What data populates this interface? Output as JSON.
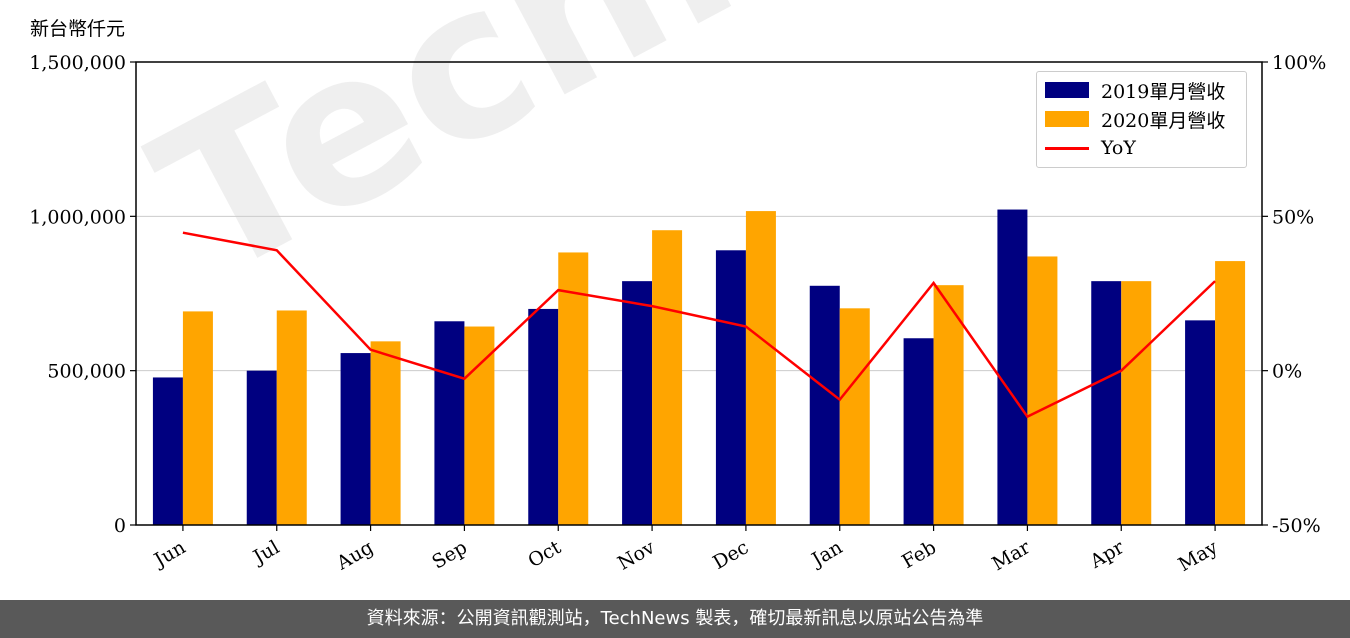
{
  "unit_label": "新台幣仟元",
  "watermark_text": "TechNews",
  "footer_text": "資料來源：公開資訊觀測站，TechNews 製表，確切最新訊息以原站公告為準",
  "colors": {
    "series_2019": "#000080",
    "series_2020": "#FFA500",
    "yoy": "#FF0000",
    "footer_bg": "#595959",
    "grid": "#cccccc"
  },
  "chart_data": {
    "type": "bar",
    "categories": [
      "Jun",
      "Jul",
      "Aug",
      "Sep",
      "Oct",
      "Nov",
      "Dec",
      "Jan",
      "Feb",
      "Mar",
      "Apr",
      "May"
    ],
    "series": [
      {
        "name": "2019單月營收",
        "type": "bar",
        "axis": "left",
        "values": [
          478000,
          500000,
          557000,
          660000,
          700000,
          790000,
          890000,
          775000,
          605000,
          1022000,
          790000,
          663000
        ]
      },
      {
        "name": "2020單月營收",
        "type": "bar",
        "axis": "left",
        "values": [
          692000,
          695000,
          595000,
          643000,
          883000,
          955000,
          1017000,
          702000,
          777000,
          870000,
          790000,
          855000
        ]
      }
    ],
    "line_series": {
      "name": "YoY",
      "type": "line",
      "axis": "right",
      "values": [
        44.7,
        39.0,
        6.8,
        -2.6,
        26.1,
        20.9,
        14.3,
        -9.4,
        28.4,
        -14.9,
        0.0,
        29.0
      ]
    },
    "ylim_left": [
      0,
      1500000
    ],
    "yticks_left": [
      "0",
      "500,000",
      "1,000,000",
      "1,500,000"
    ],
    "ylim_right": [
      -50,
      100
    ],
    "yticks_right": [
      "-50%",
      "0%",
      "50%",
      "100%"
    ],
    "grid": true,
    "legend_position": "top-right",
    "legend": [
      "2019單月營收",
      "2020單月營收",
      "YoY"
    ]
  }
}
